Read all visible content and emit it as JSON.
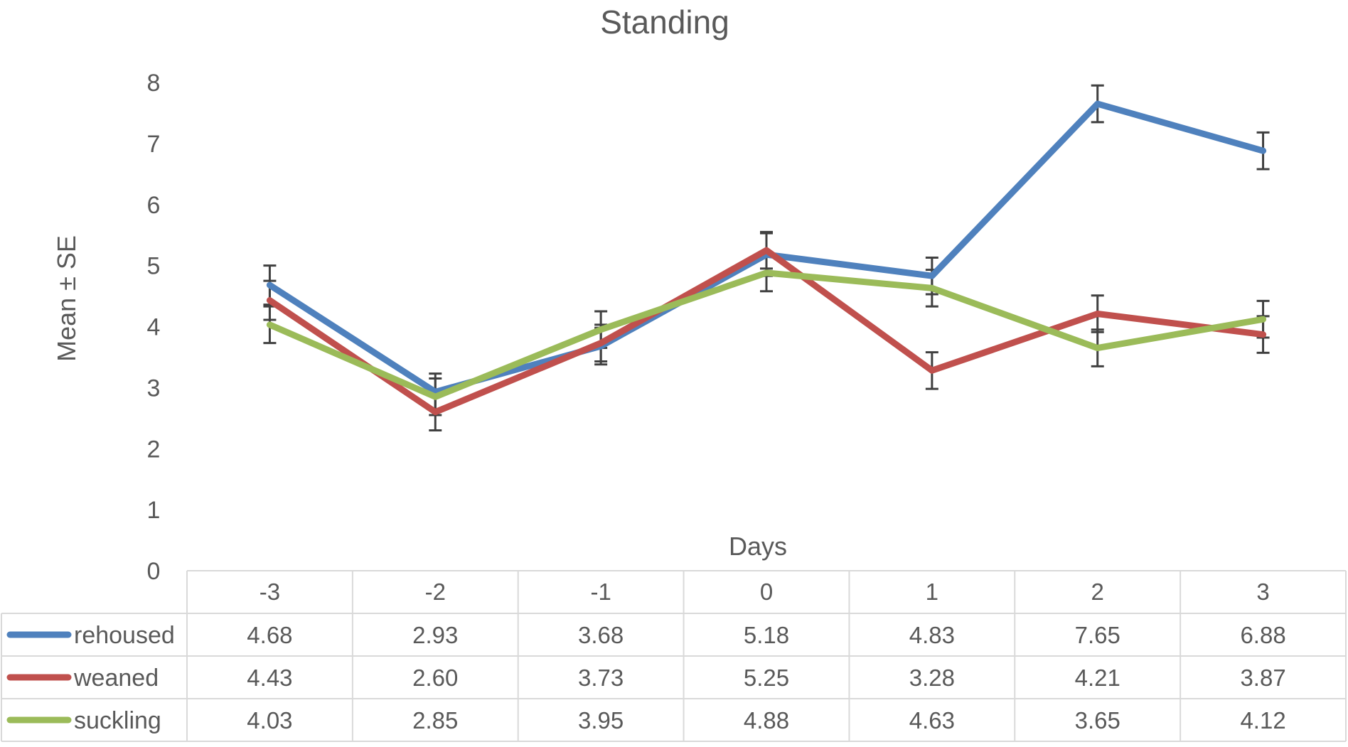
{
  "chart_data": {
    "type": "line",
    "title": "Standing",
    "xlabel": "Days",
    "ylabel": "Mean ± SE",
    "ylim": [
      0,
      8
    ],
    "yticks": [
      0,
      1,
      2,
      3,
      4,
      5,
      6,
      7,
      8
    ],
    "grid": false,
    "legend": "data-table",
    "categories": [
      "-3",
      "-2",
      "-1",
      "0",
      "1",
      "2",
      "3"
    ],
    "series": [
      {
        "name": "rehoused",
        "color": "#4F81BD",
        "values": [
          4.68,
          2.93,
          3.68,
          5.18,
          4.83,
          7.65,
          6.88
        ],
        "value_labels": [
          "4.68",
          "2.93",
          "3.68",
          "5.18",
          "4.83",
          "7.65",
          "6.88"
        ],
        "se": [
          0.32,
          0.3,
          0.3,
          0.35,
          0.3,
          0.3,
          0.3
        ]
      },
      {
        "name": "weaned",
        "color": "#C0504D",
        "values": [
          4.43,
          2.6,
          3.73,
          5.25,
          3.28,
          4.21,
          3.87
        ],
        "value_labels": [
          "4.43",
          "2.60",
          "3.73",
          "5.25",
          "3.28",
          "4.21",
          "3.87"
        ],
        "se": [
          0.32,
          0.3,
          0.3,
          0.3,
          0.3,
          0.3,
          0.3
        ]
      },
      {
        "name": "suckling",
        "color": "#9BBB59",
        "values": [
          4.03,
          2.85,
          3.95,
          4.88,
          4.63,
          3.65,
          4.12
        ],
        "value_labels": [
          "4.03",
          "2.85",
          "3.95",
          "4.88",
          "4.63",
          "3.65",
          "4.12"
        ],
        "se": [
          0.3,
          0.3,
          0.3,
          0.3,
          0.3,
          0.3,
          0.3
        ]
      }
    ]
  },
  "colors": {
    "text": "#595959",
    "table_border": "#D9D9D9",
    "error_bar": "#404040"
  }
}
